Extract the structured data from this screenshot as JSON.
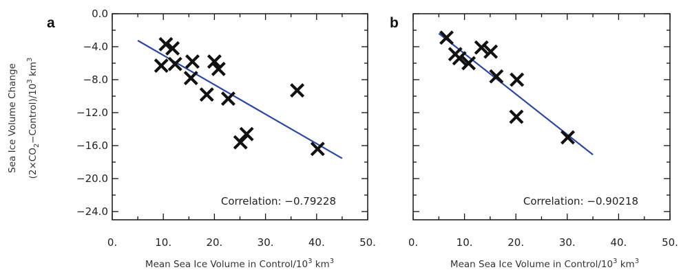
{
  "figure": {
    "ylabel_line1": "Sea Ice Volume Change",
    "ylabel_line2_pre": "(2×CO",
    "ylabel_line2_sub": "2",
    "ylabel_line2_mid": "−Control)/10",
    "ylabel_line2_sup": "3",
    "ylabel_line2_post": " km",
    "ylabel_line2_sup2": "3",
    "xlabel_pre": "Mean Sea Ice Volume in Control/10",
    "xlabel_sup": "3",
    "xlabel_mid": " km",
    "xlabel_sup2": "3"
  },
  "chart_data": [
    {
      "type": "scatter",
      "panel_label": "a",
      "x_ticks": [
        "0.",
        "10.",
        "20.",
        "30.",
        "40.",
        "50."
      ],
      "x_tick_values": [
        0,
        10,
        20,
        30,
        40,
        50
      ],
      "y_ticks": [
        "0.0",
        "−4.0",
        "−8.0",
        "−12.0",
        "−16.0",
        "−20.0",
        "−24.0"
      ],
      "y_tick_values": [
        0,
        -4,
        -8,
        -12,
        -16,
        -20,
        -24
      ],
      "xlim": [
        0,
        50
      ],
      "ylim": [
        -25,
        0
      ],
      "points": [
        {
          "x": 10.5,
          "y": -3.7
        },
        {
          "x": 11.8,
          "y": -4.2
        },
        {
          "x": 9.6,
          "y": -6.3
        },
        {
          "x": 12.3,
          "y": -6.1
        },
        {
          "x": 15.7,
          "y": -5.8
        },
        {
          "x": 20.0,
          "y": -5.8
        },
        {
          "x": 20.8,
          "y": -6.7
        },
        {
          "x": 15.4,
          "y": -7.8
        },
        {
          "x": 18.5,
          "y": -9.8
        },
        {
          "x": 22.7,
          "y": -10.3
        },
        {
          "x": 36.2,
          "y": -9.3
        },
        {
          "x": 26.3,
          "y": -14.6
        },
        {
          "x": 25.1,
          "y": -15.6
        },
        {
          "x": 40.2,
          "y": -16.4
        }
      ],
      "fit_line": {
        "x": [
          5,
          45
        ],
        "y": [
          -3.25,
          -17.55
        ]
      },
      "fit_color": "#2a45a8",
      "correlation_label": "Correlation:",
      "correlation_value": "−0.79228"
    },
    {
      "type": "scatter",
      "panel_label": "b",
      "x_ticks": [
        "0.",
        "10.",
        "20.",
        "30.",
        "40.",
        "50."
      ],
      "x_tick_values": [
        0,
        10,
        20,
        30,
        40,
        50
      ],
      "y_ticks": [],
      "y_tick_values": [
        0,
        -4,
        -8,
        -12,
        -16,
        -20,
        -24
      ],
      "xlim": [
        0,
        50
      ],
      "ylim": [
        -25,
        0
      ],
      "points": [
        {
          "x": 6.5,
          "y": -2.9
        },
        {
          "x": 8.2,
          "y": -4.9
        },
        {
          "x": 9.0,
          "y": -5.4
        },
        {
          "x": 10.8,
          "y": -6.0
        },
        {
          "x": 13.3,
          "y": -4.1
        },
        {
          "x": 15.1,
          "y": -4.6
        },
        {
          "x": 16.2,
          "y": -7.6
        },
        {
          "x": 20.2,
          "y": -8.0
        },
        {
          "x": 20.1,
          "y": -12.5
        },
        {
          "x": 30.1,
          "y": -15.0
        }
      ],
      "fit_line": {
        "x": [
          5,
          35
        ],
        "y": [
          -2.4,
          -17.1
        ]
      },
      "fit_color": "#2a45a8",
      "correlation_label": "Correlation:",
      "correlation_value": "−0.90218"
    }
  ]
}
